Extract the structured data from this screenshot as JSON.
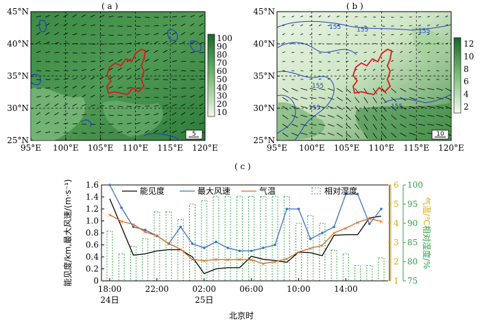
{
  "panels": {
    "a": {
      "label": "( a )",
      "lat_ticks": [
        "45°N",
        "40°N",
        "35°N",
        "30°N",
        "25°N"
      ],
      "lon_ticks": [
        "95°E",
        "100°E",
        "105°E",
        "110°E",
        "115°E",
        "120°E"
      ],
      "colorbar_ticks": [
        "100",
        "90",
        "80",
        "70",
        "60",
        "50",
        "40",
        "30",
        "20",
        "10"
      ],
      "ref_vector": "5",
      "colors": {
        "low": "#dff1d8",
        "high": "#1f6f2b",
        "contour": "#1f3fbf",
        "boundary": "#e0151b"
      }
    },
    "b": {
      "label": "( b )",
      "lat_ticks": [
        "45°N",
        "40°N",
        "35°N",
        "30°N",
        "25°N"
      ],
      "lon_ticks": [
        "95°E",
        "100°E",
        "105°E",
        "110°E",
        "115°E",
        "120°E"
      ],
      "colorbar_ticks": [
        "12",
        "10",
        "8",
        "6",
        "4",
        "2"
      ],
      "ref_vector": "10",
      "contour_label": "155"
    },
    "c": {
      "label": "( c )",
      "left_axis_label": "能见度/km,最大风速/(m·s⁻¹)",
      "right_axis1_label": "气温/℃",
      "right_axis2_label": "相对湿度/%",
      "xlabel": "北京时",
      "x_ticks": [
        "18:00",
        "22:00",
        "02:00",
        "06:00",
        "10:00",
        "14:00"
      ],
      "date_ticks": [
        "24日",
        "25日"
      ],
      "left_ticks": [
        "1.6",
        "1.4",
        "1.2",
        "1.0",
        "0.8",
        "0.6",
        "0.4",
        "0.2",
        "0"
      ],
      "right1_ticks": [
        "6",
        "5",
        "4",
        "3",
        "2",
        "1"
      ],
      "right2_ticks": [
        "100",
        "95",
        "90",
        "85",
        "80",
        "75"
      ],
      "legend": [
        "能见度",
        "最大风速",
        "气温",
        "相对湿度"
      ],
      "colors": {
        "visibility": "#000000",
        "wind": "#3a6fc4",
        "temp": "#e0651a",
        "rh": "#2ea043",
        "axis_temp": "#e0a800",
        "axis_rh": "#2ea043",
        "axis_wind": "#3a6fc4"
      }
    }
  },
  "chart_data": [
    {
      "type": "line",
      "panel": "c",
      "x": [
        "18:00",
        "19:00",
        "20:00",
        "21:00",
        "22:00",
        "23:00",
        "00:00",
        "01:00",
        "02:00",
        "03:00",
        "04:00",
        "05:00",
        "06:00",
        "07:00",
        "08:00",
        "09:00",
        "10:00",
        "11:00",
        "12:00",
        "13:00",
        "14:00",
        "15:00",
        "16:00",
        "17:00"
      ],
      "series": [
        {
          "name": "能见度",
          "axis": "left",
          "values": [
            1.37,
            0.9,
            0.43,
            0.45,
            0.5,
            0.52,
            0.52,
            0.4,
            0.12,
            0.2,
            0.22,
            0.22,
            0.41,
            0.36,
            0.34,
            0.31,
            0.48,
            0.47,
            0.42,
            0.76,
            0.77,
            0.77,
            1.05,
            1.08
          ]
        },
        {
          "name": "最大风速",
          "axis": "left",
          "values": [
            1.6,
            1.22,
            0.9,
            0.85,
            0.75,
            0.62,
            0.9,
            0.62,
            0.55,
            0.65,
            0.55,
            0.5,
            0.5,
            0.55,
            0.6,
            1.2,
            1.2,
            0.7,
            0.8,
            0.9,
            1.45,
            1.45,
            0.95,
            1.2
          ]
        },
        {
          "name": "气温",
          "axis": "right1",
          "ylim": [
            1,
            6
          ],
          "values": [
            4.45,
            4.1,
            3.95,
            3.55,
            3.35,
            2.95,
            2.65,
            2.12,
            2.05,
            2.12,
            2.1,
            2.12,
            2.1,
            1.9,
            2.0,
            2.15,
            2.5,
            2.7,
            2.85,
            3.5,
            3.75,
            4.05,
            4.25,
            4.1
          ]
        },
        {
          "name": "相对湿度",
          "type": "bar",
          "axis": "right2",
          "ylim": [
            75,
            100
          ],
          "values": [
            88,
            82,
            84,
            86,
            93,
            93,
            91,
            95,
            96,
            97,
            97,
            97,
            97,
            97,
            97,
            97,
            90,
            92,
            90,
            83,
            82,
            79,
            79,
            81
          ]
        }
      ],
      "ylim_left": [
        0,
        1.6
      ]
    }
  ]
}
